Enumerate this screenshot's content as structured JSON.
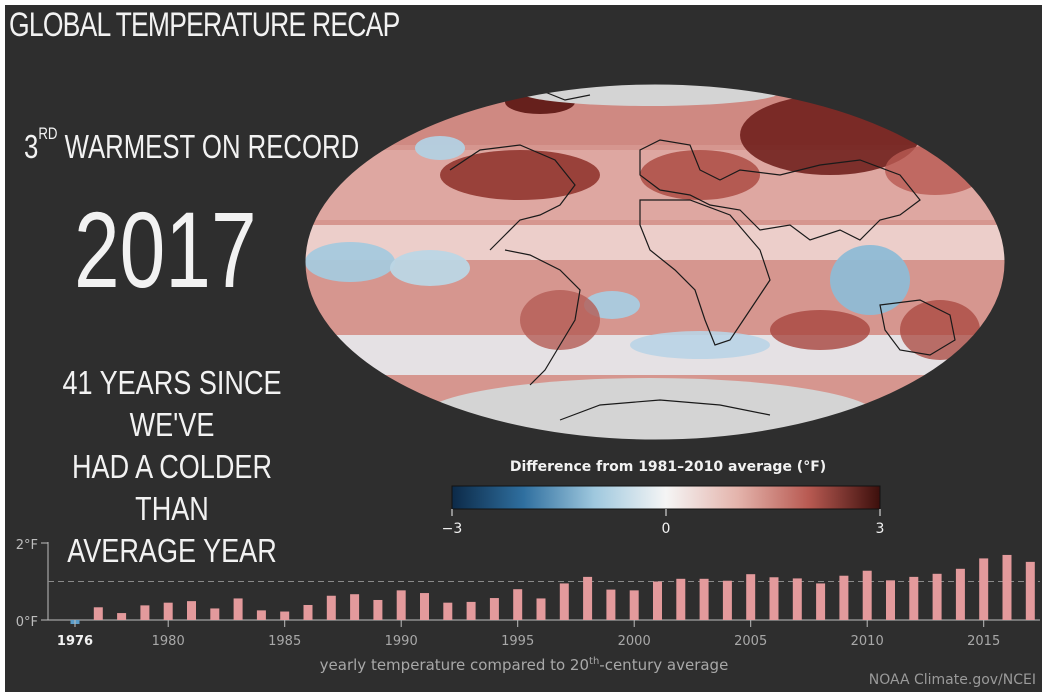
{
  "title": "GLOBAL TEMPERATURE RECAP",
  "rank": {
    "number": "3",
    "suffix": "RD",
    "text": "WARMEST ON RECORD"
  },
  "year": "2017",
  "since_lines": [
    "41 YEARS SINCE WE'VE",
    "HAD A COLDER THAN",
    "AVERAGE YEAR"
  ],
  "map": {
    "legend_title": "Difference from 1981–2010 average (°F)",
    "legend_ticks": [
      "−3",
      "0",
      "3"
    ],
    "legend_colors": [
      "#0c2a48",
      "#2f6f9f",
      "#9fc8de",
      "#f5f5f5",
      "#e4b4ac",
      "#b85a52",
      "#3c0f0c"
    ]
  },
  "chart_data": {
    "type": "bar",
    "x": [
      1976,
      1977,
      1978,
      1979,
      1980,
      1981,
      1982,
      1983,
      1984,
      1985,
      1986,
      1987,
      1988,
      1989,
      1990,
      1991,
      1992,
      1993,
      1994,
      1995,
      1996,
      1997,
      1998,
      1999,
      2000,
      2001,
      2002,
      2003,
      2004,
      2005,
      2006,
      2007,
      2008,
      2009,
      2010,
      2011,
      2012,
      2013,
      2014,
      2015,
      2016,
      2017
    ],
    "values": [
      -0.1,
      0.33,
      0.18,
      0.38,
      0.45,
      0.49,
      0.3,
      0.56,
      0.25,
      0.22,
      0.39,
      0.63,
      0.67,
      0.52,
      0.77,
      0.7,
      0.45,
      0.47,
      0.57,
      0.8,
      0.56,
      0.95,
      1.12,
      0.79,
      0.77,
      1.0,
      1.07,
      1.07,
      1.02,
      1.19,
      1.11,
      1.08,
      0.95,
      1.15,
      1.28,
      1.03,
      1.12,
      1.2,
      1.33,
      1.6,
      1.69,
      1.51
    ],
    "ylim": [
      0,
      2
    ],
    "ytick_labels": [
      "0°F",
      "2°F"
    ],
    "reference_line": 1,
    "xtick_labels": [
      "1976",
      "1980",
      "1985",
      "1990",
      "1995",
      "2000",
      "2005",
      "2010",
      "2015"
    ],
    "xlabel_main": "yearly temperature compared to 20",
    "xlabel_sup": "th",
    "xlabel_tail": "-century average",
    "colors": {
      "positive": "#e39a9c",
      "negative": "#5b9cc8"
    }
  },
  "credit": "NOAA Climate.gov/NCEI"
}
